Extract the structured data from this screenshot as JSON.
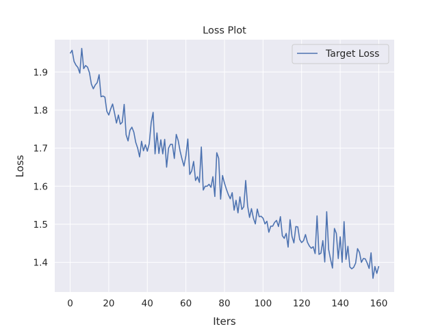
{
  "chart_data": {
    "type": "line",
    "title": "Loss Plot",
    "xlabel": "Iters",
    "ylabel": "Loss",
    "xlim": [
      -8,
      168
    ],
    "ylim": [
      1.322,
      1.985
    ],
    "xticks": [
      0,
      20,
      40,
      60,
      80,
      100,
      120,
      140,
      160
    ],
    "yticks": [
      1.4,
      1.5,
      1.6,
      1.7,
      1.8,
      1.9
    ],
    "grid": true,
    "legend_position": "top-right",
    "series": [
      {
        "name": "Target Loss",
        "color": "#4c72b0",
        "x": [
          0,
          1,
          2,
          3,
          4,
          5,
          6,
          7,
          8,
          9,
          10,
          11,
          12,
          13,
          14,
          15,
          16,
          17,
          18,
          19,
          20,
          21,
          22,
          23,
          24,
          25,
          26,
          27,
          28,
          29,
          30,
          31,
          32,
          33,
          34,
          35,
          36,
          37,
          38,
          39,
          40,
          41,
          42,
          43,
          44,
          45,
          46,
          47,
          48,
          49,
          50,
          51,
          52,
          53,
          54,
          55,
          56,
          57,
          58,
          59,
          60,
          61,
          62,
          63,
          64,
          65,
          66,
          67,
          68,
          69,
          70,
          71,
          72,
          73,
          74,
          75,
          76,
          77,
          78,
          79,
          80,
          81,
          82,
          83,
          84,
          85,
          86,
          87,
          88,
          89,
          90,
          91,
          92,
          93,
          94,
          95,
          96,
          97,
          98,
          99,
          100,
          101,
          102,
          103,
          104,
          105,
          106,
          107,
          108,
          109,
          110,
          111,
          112,
          113,
          114,
          115,
          116,
          117,
          118,
          119,
          120,
          121,
          122,
          123,
          124,
          125,
          126,
          127,
          128,
          129,
          130,
          131,
          132,
          133,
          134,
          135,
          136,
          137,
          138,
          139,
          140,
          141,
          142,
          143,
          144,
          145,
          146,
          147,
          148,
          149,
          150,
          151,
          152,
          153,
          154,
          155,
          156,
          157,
          158,
          159,
          160
        ],
        "values": [
          1.949,
          1.957,
          1.928,
          1.918,
          1.912,
          1.897,
          1.962,
          1.909,
          1.917,
          1.913,
          1.898,
          1.868,
          1.856,
          1.866,
          1.872,
          1.893,
          1.835,
          1.837,
          1.834,
          1.797,
          1.787,
          1.803,
          1.816,
          1.792,
          1.766,
          1.787,
          1.763,
          1.768,
          1.815,
          1.735,
          1.719,
          1.747,
          1.755,
          1.742,
          1.715,
          1.7,
          1.677,
          1.718,
          1.693,
          1.709,
          1.692,
          1.712,
          1.767,
          1.794,
          1.685,
          1.74,
          1.686,
          1.722,
          1.685,
          1.723,
          1.65,
          1.7,
          1.71,
          1.71,
          1.673,
          1.736,
          1.72,
          1.692,
          1.671,
          1.653,
          1.68,
          1.724,
          1.631,
          1.64,
          1.665,
          1.615,
          1.625,
          1.61,
          1.703,
          1.59,
          1.6,
          1.6,
          1.605,
          1.597,
          1.625,
          1.573,
          1.688,
          1.673,
          1.566,
          1.628,
          1.608,
          1.592,
          1.578,
          1.567,
          1.583,
          1.537,
          1.563,
          1.53,
          1.572,
          1.539,
          1.546,
          1.615,
          1.548,
          1.518,
          1.541,
          1.516,
          1.501,
          1.54,
          1.52,
          1.521,
          1.516,
          1.501,
          1.508,
          1.479,
          1.495,
          1.495,
          1.505,
          1.51,
          1.494,
          1.52,
          1.47,
          1.463,
          1.476,
          1.44,
          1.512,
          1.468,
          1.451,
          1.494,
          1.493,
          1.46,
          1.452,
          1.457,
          1.473,
          1.453,
          1.443,
          1.437,
          1.441,
          1.423,
          1.522,
          1.421,
          1.424,
          1.457,
          1.401,
          1.533,
          1.434,
          1.408,
          1.385,
          1.489,
          1.476,
          1.41,
          1.467,
          1.4,
          1.507,
          1.408,
          1.442,
          1.388,
          1.383,
          1.387,
          1.398,
          1.436,
          1.426,
          1.4,
          1.41,
          1.409,
          1.398,
          1.384,
          1.425,
          1.358,
          1.389,
          1.371,
          1.39
        ]
      }
    ]
  }
}
